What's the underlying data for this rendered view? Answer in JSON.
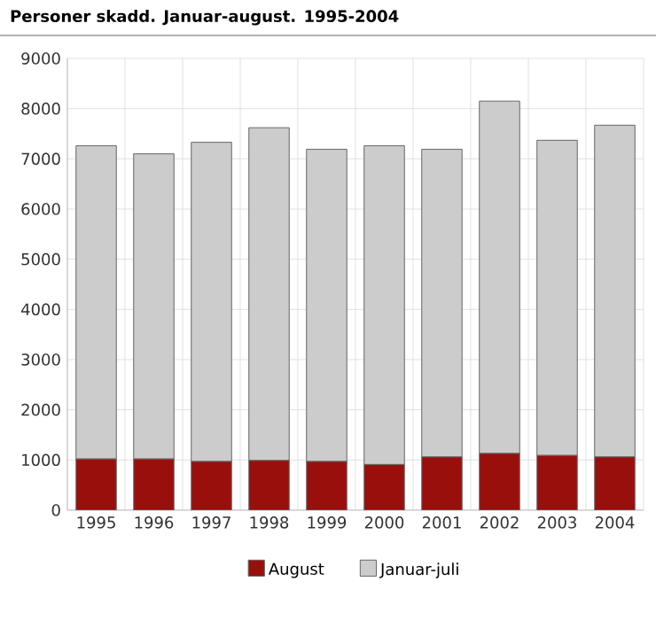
{
  "chart_data": {
    "type": "bar",
    "title": "Personer skadd. Januar-august. 1995-2004",
    "stacked": true,
    "categories": [
      "1995",
      "1996",
      "1997",
      "1998",
      "1999",
      "2000",
      "2001",
      "2002",
      "2003",
      "2004"
    ],
    "series": [
      {
        "name": "August",
        "color": "#990f0c",
        "values": [
          1020,
          1020,
          970,
          990,
          970,
          910,
          1060,
          1130,
          1090,
          1060
        ]
      },
      {
        "name": "Januar-juli",
        "color": "#cccccc",
        "values": [
          6240,
          6080,
          6360,
          6630,
          6220,
          6350,
          6130,
          7020,
          6280,
          6610
        ]
      }
    ],
    "ylim": [
      0,
      9000
    ],
    "yticks": [
      0,
      1000,
      2000,
      3000,
      4000,
      5000,
      6000,
      7000,
      8000,
      9000
    ],
    "grid": true,
    "legend": "bottom"
  }
}
